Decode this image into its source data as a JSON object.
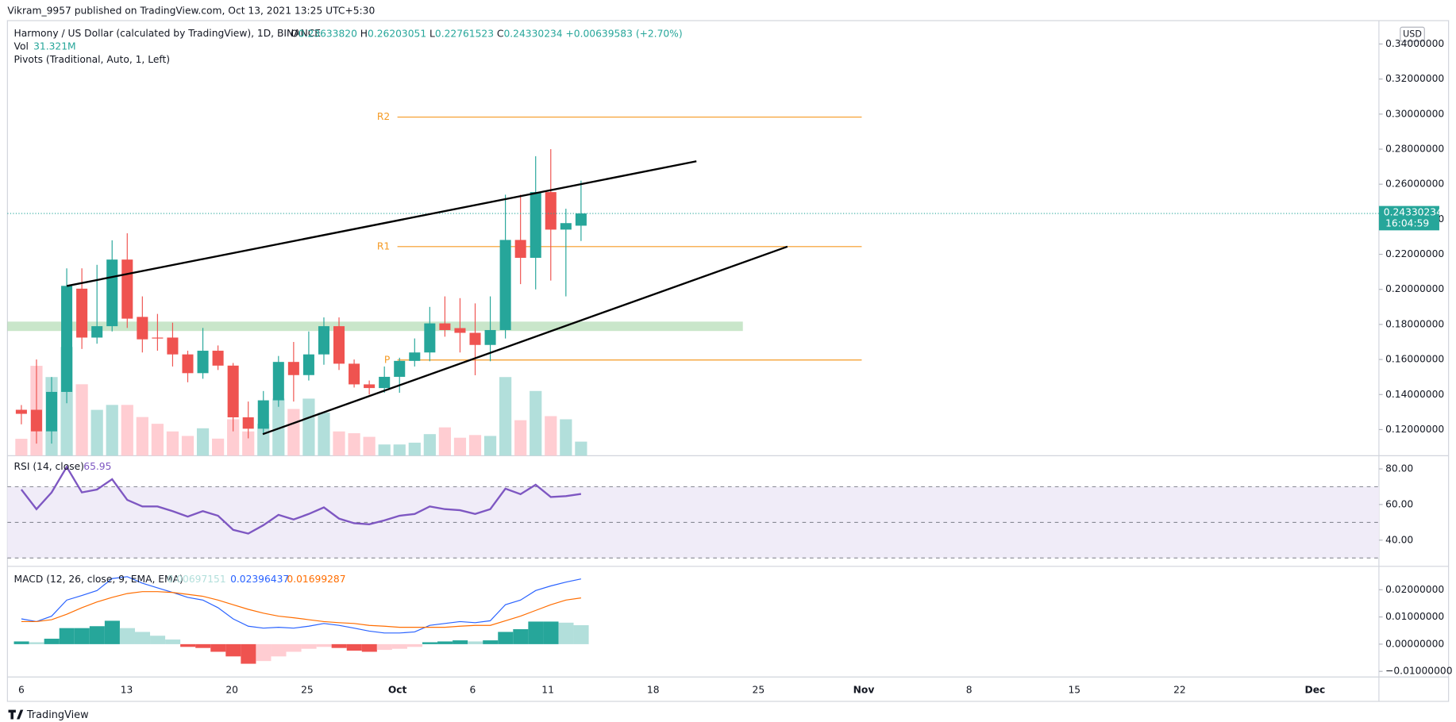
{
  "header": {
    "publisher": "Vikram_9957 published on TradingView.com, Oct 13, 2021 13:25 UTC+5:30",
    "symbol": "Harmony / US Dollar (calculated by TradingView), 1D, BINANCE",
    "ohlc": [
      {
        "key": "O",
        "value": "0.23633820"
      },
      {
        "key": "H",
        "value": "0.26203051"
      },
      {
        "key": "L",
        "value": "0.22761523"
      },
      {
        "key": "C",
        "value": "0.24330234"
      }
    ],
    "change": "+0.00639583 (+2.70%)",
    "volume_label": "Vol",
    "volume_value": "31.321M",
    "pivots_label": "Pivots (Traditional, Auto, 1, Left)"
  },
  "currency": "USD",
  "last_price": "0.24330234",
  "countdown": "16:04:59",
  "footer": "TradingView",
  "x_labels": [
    "6",
    "13",
    "20",
    "25",
    "Oct",
    "6",
    "11",
    "18",
    "25",
    "Nov",
    "8",
    "15",
    "22",
    "Dec"
  ],
  "chart_data": [
    {
      "type": "candlestick",
      "up_color": "#26a69a",
      "down_color": "#ef5350",
      "open": [
        0.1313,
        0.1313,
        0.119,
        0.1415,
        0.2004,
        0.1725,
        0.179,
        0.217,
        0.1843,
        0.1725,
        0.1725,
        0.1629,
        0.1522,
        0.165,
        0.1565,
        0.127,
        0.1205,
        0.1367,
        0.1586,
        0.1511,
        0.1629,
        0.179,
        0.1576,
        0.1458,
        0.1437,
        0.1501,
        0.1592,
        0.164,
        0.1806,
        0.1779,
        0.1752,
        0.1683,
        0.1768,
        0.2282,
        0.218,
        0.2555,
        0.2341,
        0.2363382
      ],
      "high": [
        0.134,
        0.16,
        0.15,
        0.212,
        0.212,
        0.214,
        0.228,
        0.232,
        0.196,
        0.186,
        0.181,
        0.165,
        0.178,
        0.168,
        0.158,
        0.136,
        0.142,
        0.162,
        0.17,
        0.176,
        0.184,
        0.184,
        0.16,
        0.148,
        0.156,
        0.161,
        0.172,
        0.19,
        0.196,
        0.195,
        0.192,
        0.196,
        0.254,
        0.254,
        0.276,
        0.28,
        0.246,
        0.26203051
      ],
      "low": [
        0.123,
        0.112,
        0.112,
        0.135,
        0.166,
        0.169,
        0.176,
        0.178,
        0.164,
        0.165,
        0.156,
        0.147,
        0.149,
        0.154,
        0.119,
        0.115,
        0.118,
        0.133,
        0.136,
        0.148,
        0.157,
        0.154,
        0.144,
        0.14,
        0.141,
        0.141,
        0.156,
        0.159,
        0.173,
        0.164,
        0.151,
        0.159,
        0.172,
        0.203,
        0.2,
        0.205,
        0.196,
        0.22761523
      ],
      "close": [
        0.129,
        0.119,
        0.1415,
        0.202,
        0.1725,
        0.179,
        0.217,
        0.1833,
        0.1715,
        0.172,
        0.1629,
        0.1522,
        0.165,
        0.1565,
        0.127,
        0.1205,
        0.1367,
        0.1586,
        0.1511,
        0.1629,
        0.179,
        0.1576,
        0.1458,
        0.1437,
        0.1501,
        0.1592,
        0.164,
        0.1806,
        0.1768,
        0.1752,
        0.1683,
        0.1768,
        0.2282,
        0.218,
        0.2555,
        0.2341,
        0.2378,
        0.24330234
      ],
      "ylim": [
        0.1051,
        0.3651
      ],
      "yticks": [
        {
          "value": 0.34,
          "label": "0.34000000"
        },
        {
          "value": 0.32,
          "label": "0.32000000"
        },
        {
          "value": 0.3,
          "label": "0.30000000"
        },
        {
          "value": 0.28,
          "label": "0.28000000"
        },
        {
          "value": 0.26,
          "label": "0.26000000"
        },
        {
          "value": 0.24,
          "label": "0.24000000"
        },
        {
          "value": 0.22,
          "label": "0.22000000"
        },
        {
          "value": 0.2,
          "label": "0.20000000"
        },
        {
          "value": 0.18,
          "label": "0.18000000"
        },
        {
          "value": 0.16,
          "label": "0.16000000"
        },
        {
          "value": 0.14,
          "label": "0.14000000"
        },
        {
          "value": 0.12,
          "label": "0.12000000"
        }
      ],
      "pivots": [
        {
          "label": "R2",
          "value": 0.2983
        },
        {
          "label": "R1",
          "value": 0.2244
        },
        {
          "label": "P",
          "value": 0.1597
        }
      ],
      "pivot_color": "#f59a23",
      "volume": {
        "up_color": "#b2dfdb",
        "down_color": "#ffcdd2",
        "values": [
          37.6,
          200,
          175,
          242,
          159,
          102,
          113,
          113,
          86,
          71,
          54,
          44,
          61,
          38,
          81,
          54,
          71,
          127,
          104,
          127,
          96,
          54,
          50,
          42,
          25,
          25,
          29,
          48,
          63,
          40,
          46,
          44,
          175,
          79,
          144,
          88,
          81,
          31.321
        ]
      }
    },
    {
      "type": "line",
      "title": "RSI (14, close)",
      "color": "#7e57c2",
      "band_color": "#f0ecf8",
      "series": [
        {
          "values": [
            68.4,
            57.4,
            66.8,
            81.1,
            66.8,
            68.4,
            74.2,
            62.6,
            58.9,
            58.9,
            56.3,
            53.2,
            56.3,
            53.7,
            45.8,
            43.7,
            48.4,
            54.2,
            51.6,
            54.7,
            58.4,
            52.1,
            49.5,
            48.9,
            51.1,
            53.7,
            54.7,
            58.9,
            57.4,
            56.8,
            54.7,
            57.4,
            68.9,
            65.8,
            71.1,
            64.2,
            64.7,
            65.95
          ]
        }
      ],
      "levels": [
        70,
        50,
        30
      ],
      "ylim": [
        25.3,
        87.4
      ],
      "yticks": [
        {
          "value": 80,
          "label": "80.00"
        },
        {
          "value": 60,
          "label": "60.00"
        },
        {
          "value": 40,
          "label": "40.00"
        }
      ]
    },
    {
      "type": "macd",
      "title": "MACD (12, 26, close, 9, EMA, EMA)",
      "histogram": {
        "values": [
          0.001,
          0.0007,
          0.002,
          0.0059,
          0.0059,
          0.0066,
          0.0086,
          0.0059,
          0.0045,
          0.0031,
          0.0017,
          -0.001,
          -0.0014,
          -0.0028,
          -0.0045,
          -0.0072,
          -0.0062,
          -0.0045,
          -0.0028,
          -0.0017,
          -0.001,
          -0.0014,
          -0.0024,
          -0.0028,
          -0.0021,
          -0.0017,
          -0.001,
          0.0007,
          0.001,
          0.0014,
          0.001,
          0.0014,
          0.0045,
          0.0055,
          0.0083,
          0.0083,
          0.0079,
          0.00697151
        ],
        "colors": [
          "#26a69a",
          "#b2dfdb",
          "#ef5350",
          "#ffcdd2"
        ]
      },
      "series": [
        {
          "color": "#2962ff",
          "values": [
            0.0093,
            0.0083,
            0.0103,
            0.0162,
            0.0179,
            0.0197,
            0.0241,
            0.0248,
            0.0224,
            0.0207,
            0.019,
            0.0172,
            0.0162,
            0.0134,
            0.0093,
            0.0066,
            0.0059,
            0.0062,
            0.0059,
            0.0066,
            0.0076,
            0.0069,
            0.0059,
            0.0048,
            0.0041,
            0.0041,
            0.0045,
            0.0069,
            0.0076,
            0.0083,
            0.0079,
            0.0086,
            0.0145,
            0.0162,
            0.0197,
            0.0214,
            0.0228,
            0.02396437
          ]
        },
        {
          "color": "#ff6d00",
          "values": [
            0.0083,
            0.0083,
            0.009,
            0.011,
            0.0134,
            0.0155,
            0.0172,
            0.0186,
            0.0193,
            0.0193,
            0.019,
            0.0183,
            0.0176,
            0.0162,
            0.0145,
            0.0128,
            0.0114,
            0.0103,
            0.0097,
            0.009,
            0.0083,
            0.0079,
            0.0076,
            0.0069,
            0.0066,
            0.0062,
            0.0062,
            0.0062,
            0.0062,
            0.0066,
            0.0069,
            0.0069,
            0.0086,
            0.0103,
            0.0124,
            0.0145,
            0.0162,
            0.01699287
          ]
        }
      ],
      "ylim": [
        -0.01207,
        0.0286
      ],
      "yticks": [
        {
          "value": 0.02,
          "label": "0.02000000"
        },
        {
          "value": 0.01,
          "label": "0.01000000"
        },
        {
          "value": 0,
          "label": "0.00000000"
        },
        {
          "value": -0.01,
          "label": "−0.01000000"
        }
      ]
    }
  ]
}
